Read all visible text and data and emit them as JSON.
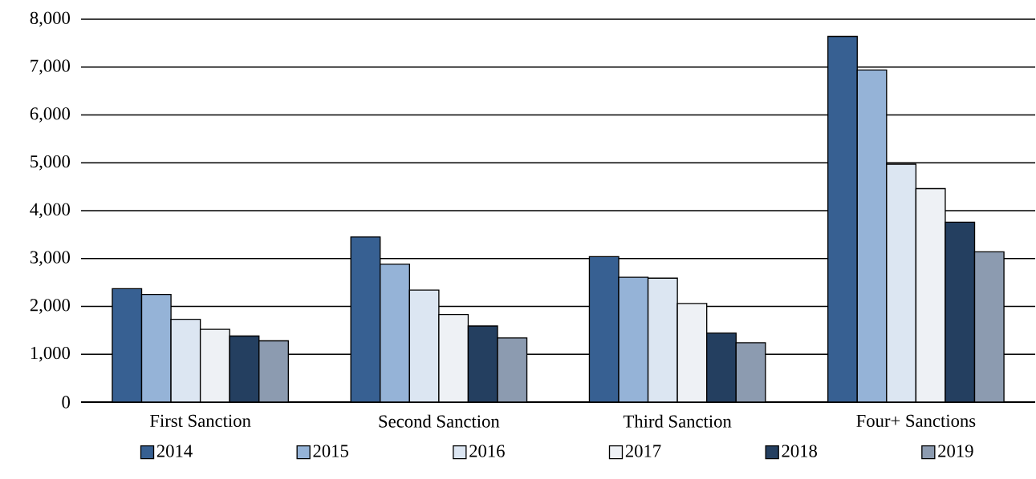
{
  "chart_data": {
    "type": "bar",
    "categories": [
      "First Sanction",
      "Second Sanction",
      "Third Sanction",
      "Four+ Sanctions"
    ],
    "series": [
      {
        "name": "2014",
        "color": "#376092",
        "values": [
          2370,
          3450,
          3040,
          7640
        ]
      },
      {
        "name": "2015",
        "color": "#95b3d7",
        "values": [
          2250,
          2880,
          2610,
          6940
        ]
      },
      {
        "name": "2016",
        "color": "#dce6f2",
        "values": [
          1730,
          2340,
          2590,
          4970
        ]
      },
      {
        "name": "2017",
        "color": "#eef1f5",
        "values": [
          1520,
          1830,
          2060,
          4460
        ]
      },
      {
        "name": "2018",
        "color": "#243f60",
        "values": [
          1380,
          1590,
          1440,
          3760
        ]
      },
      {
        "name": "2019",
        "color": "#8c9bb0",
        "values": [
          1280,
          1340,
          1240,
          3140
        ]
      }
    ],
    "ylim": [
      0,
      8000
    ],
    "yticks": [
      0,
      {
        "value": 1000,
        "label": "1,000"
      },
      {
        "value": 2000,
        "label": "2,000"
      },
      {
        "value": 3000,
        "label": "3,000"
      },
      {
        "value": 4000,
        "label": "4,000"
      },
      {
        "value": 5000,
        "label": "5,000"
      },
      {
        "value": 6000,
        "label": "6,000"
      },
      {
        "value": 7000,
        "label": "7,000"
      },
      {
        "value": 8000,
        "label": "8,000"
      }
    ],
    "grid": "y",
    "legend": "bottom"
  }
}
